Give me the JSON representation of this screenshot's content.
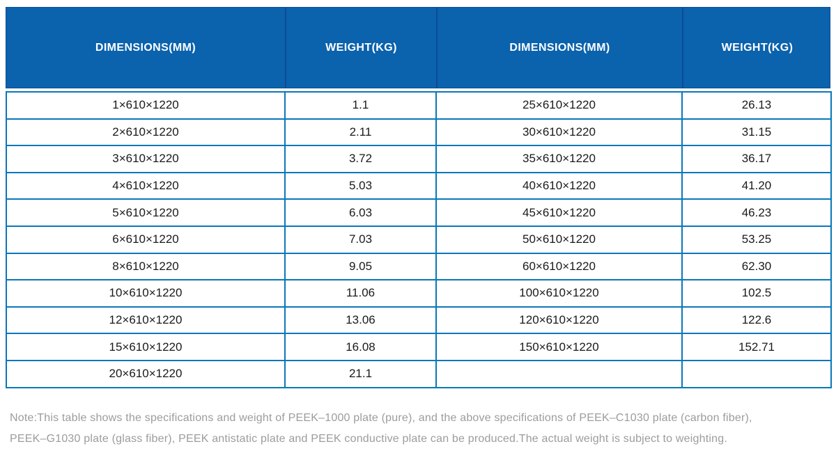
{
  "colors": {
    "header_bg": "#0b62ad",
    "header_separator": "#0a4c96",
    "cell_border": "#0a77b9",
    "header_text": "#ffffff",
    "body_text": "#1a1a1a",
    "note_text": "#9c9c9c"
  },
  "table": {
    "columns": [
      {
        "label": "DIMENSIONS(MM)"
      },
      {
        "label": "WEIGHT(KG)"
      },
      {
        "label": "DIMENSIONS(MM)"
      },
      {
        "label": "WEIGHT(KG)"
      }
    ],
    "rows": [
      [
        "1×610×1220",
        "1.1",
        "25×610×1220",
        "26.13"
      ],
      [
        "2×610×1220",
        "2.11",
        "30×610×1220",
        "31.15"
      ],
      [
        "3×610×1220",
        "3.72",
        "35×610×1220",
        "36.17"
      ],
      [
        "4×610×1220",
        "5.03",
        "40×610×1220",
        "41.20"
      ],
      [
        "5×610×1220",
        "6.03",
        "45×610×1220",
        "46.23"
      ],
      [
        "6×610×1220",
        "7.03",
        "50×610×1220",
        "53.25"
      ],
      [
        "8×610×1220",
        "9.05",
        "60×610×1220",
        "62.30"
      ],
      [
        "10×610×1220",
        "11.06",
        "100×610×1220",
        "102.5"
      ],
      [
        "12×610×1220",
        "13.06",
        "120×610×1220",
        "122.6"
      ],
      [
        "15×610×1220",
        "16.08",
        "150×610×1220",
        "152.71"
      ],
      [
        "20×610×1220",
        "21.1",
        "",
        ""
      ]
    ]
  },
  "note": {
    "line1": "Note:This table shows the specifications and weight of PEEK–1000 plate (pure), and the above specifications of PEEK–C1030 plate (carbon fiber),",
    "line2": "PEEK–G1030 plate (glass fiber), PEEK antistatic plate and PEEK conductive plate can be produced.The actual weight is subject to weighting."
  }
}
